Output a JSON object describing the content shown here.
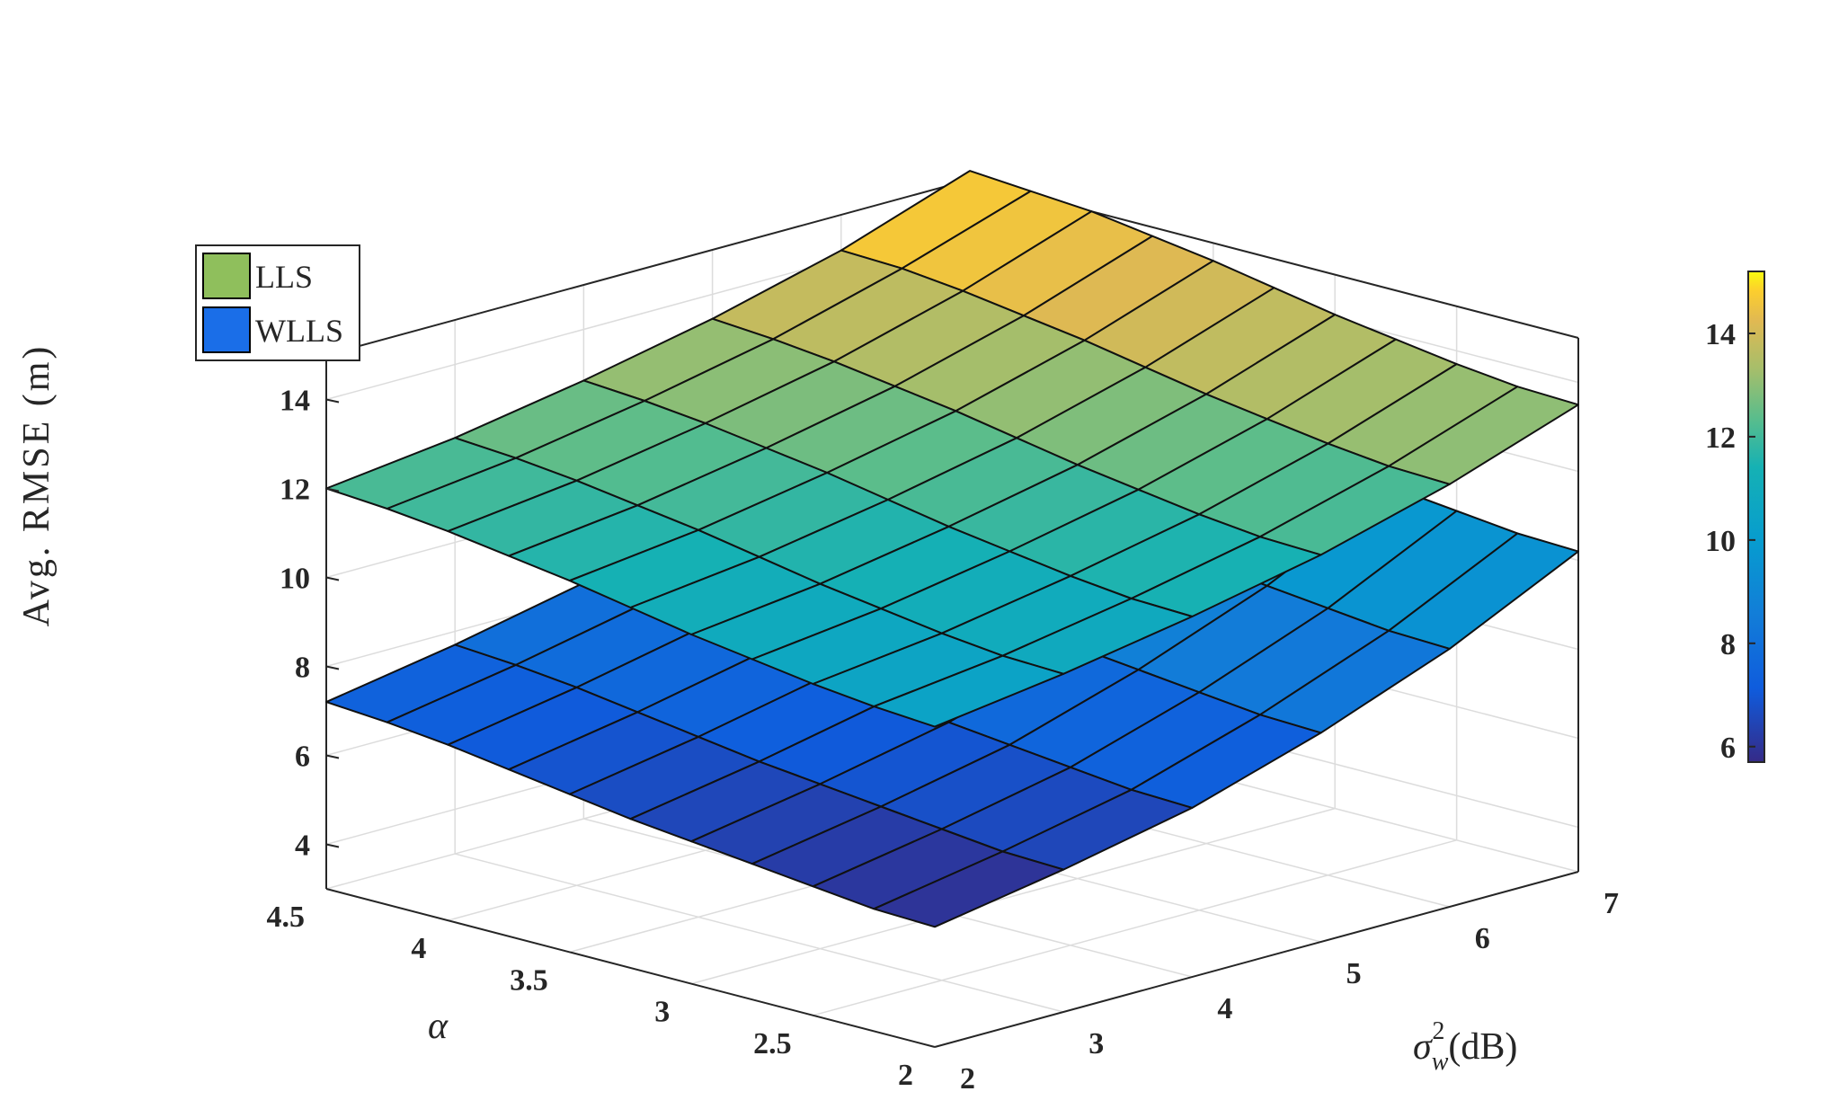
{
  "chart_data": {
    "type": "surface3d",
    "zlabel": "Avg. RMSE (m)",
    "xlabel": "α",
    "ylabel_main": "σ",
    "ylabel_sup": "2",
    "ylabel_sub": "w",
    "ylabel_unit": "(dB)",
    "alpha_ticks": [
      "2",
      "2.5",
      "3",
      "3.5",
      "4",
      "4.5"
    ],
    "sigma_ticks": [
      "2",
      "3",
      "4",
      "5",
      "6",
      "7"
    ],
    "z_ticks": [
      "4",
      "6",
      "8",
      "10",
      "12",
      "14"
    ],
    "colorbar_ticks": [
      "6",
      "8",
      "10",
      "12",
      "14"
    ],
    "alpha_range": [
      2,
      4.5
    ],
    "sigma_range": [
      2,
      7
    ],
    "z_range": [
      3,
      15
    ],
    "colorbar_range": [
      5.7,
      15.2
    ],
    "alpha": [
      2.0,
      2.25,
      2.5,
      2.75,
      3.0,
      3.25,
      3.5,
      3.75,
      4.0,
      4.25,
      4.5
    ],
    "sigma2_dB": [
      2,
      3,
      4,
      5,
      6,
      7
    ],
    "grid": true,
    "legend_position": "top-left",
    "colormap": "parula",
    "series": [
      {
        "name": "LLS",
        "legend_color": "#8fbf5c",
        "surface": [
          [
            10.2,
            10.6,
            11.1,
            11.7,
            12.5,
            13.5
          ],
          [
            10.3,
            10.65,
            11.15,
            11.75,
            12.55,
            13.55
          ],
          [
            10.45,
            10.8,
            11.3,
            11.9,
            12.7,
            13.7
          ],
          [
            10.65,
            11.0,
            11.5,
            12.1,
            12.9,
            13.9
          ],
          [
            10.85,
            11.2,
            11.7,
            12.3,
            13.1,
            14.1
          ],
          [
            11.1,
            11.45,
            11.95,
            12.55,
            13.35,
            14.35
          ],
          [
            11.35,
            11.7,
            12.2,
            12.8,
            13.6,
            14.6
          ],
          [
            11.55,
            11.9,
            12.4,
            13.0,
            13.8,
            14.8
          ],
          [
            11.75,
            12.1,
            12.6,
            13.2,
            14.0,
            15.0
          ],
          [
            11.9,
            12.25,
            12.75,
            13.35,
            14.15,
            15.1
          ],
          [
            12.0,
            12.35,
            12.85,
            13.45,
            14.2,
            15.2
          ]
        ]
      },
      {
        "name": "WLLS",
        "legend_color": "#1a6ee8",
        "surface": [
          [
            5.7,
            6.2,
            6.8,
            7.7,
            8.8,
            10.2
          ],
          [
            5.75,
            6.25,
            6.85,
            7.75,
            8.85,
            10.25
          ],
          [
            5.9,
            6.4,
            7.0,
            7.9,
            9.0,
            10.4
          ],
          [
            6.05,
            6.55,
            7.15,
            8.05,
            9.15,
            10.55
          ],
          [
            6.2,
            6.7,
            7.3,
            8.2,
            9.3,
            10.7
          ],
          [
            6.35,
            6.85,
            7.45,
            8.35,
            9.45,
            10.85
          ],
          [
            6.55,
            7.05,
            7.65,
            8.55,
            9.65,
            11.05
          ],
          [
            6.75,
            7.25,
            7.85,
            8.75,
            9.85,
            11.25
          ],
          [
            6.95,
            7.45,
            8.05,
            8.95,
            10.05,
            11.45
          ],
          [
            7.1,
            7.6,
            8.2,
            9.1,
            10.2,
            11.6
          ],
          [
            7.2,
            7.7,
            8.3,
            9.2,
            10.3,
            11.7
          ]
        ]
      }
    ]
  }
}
